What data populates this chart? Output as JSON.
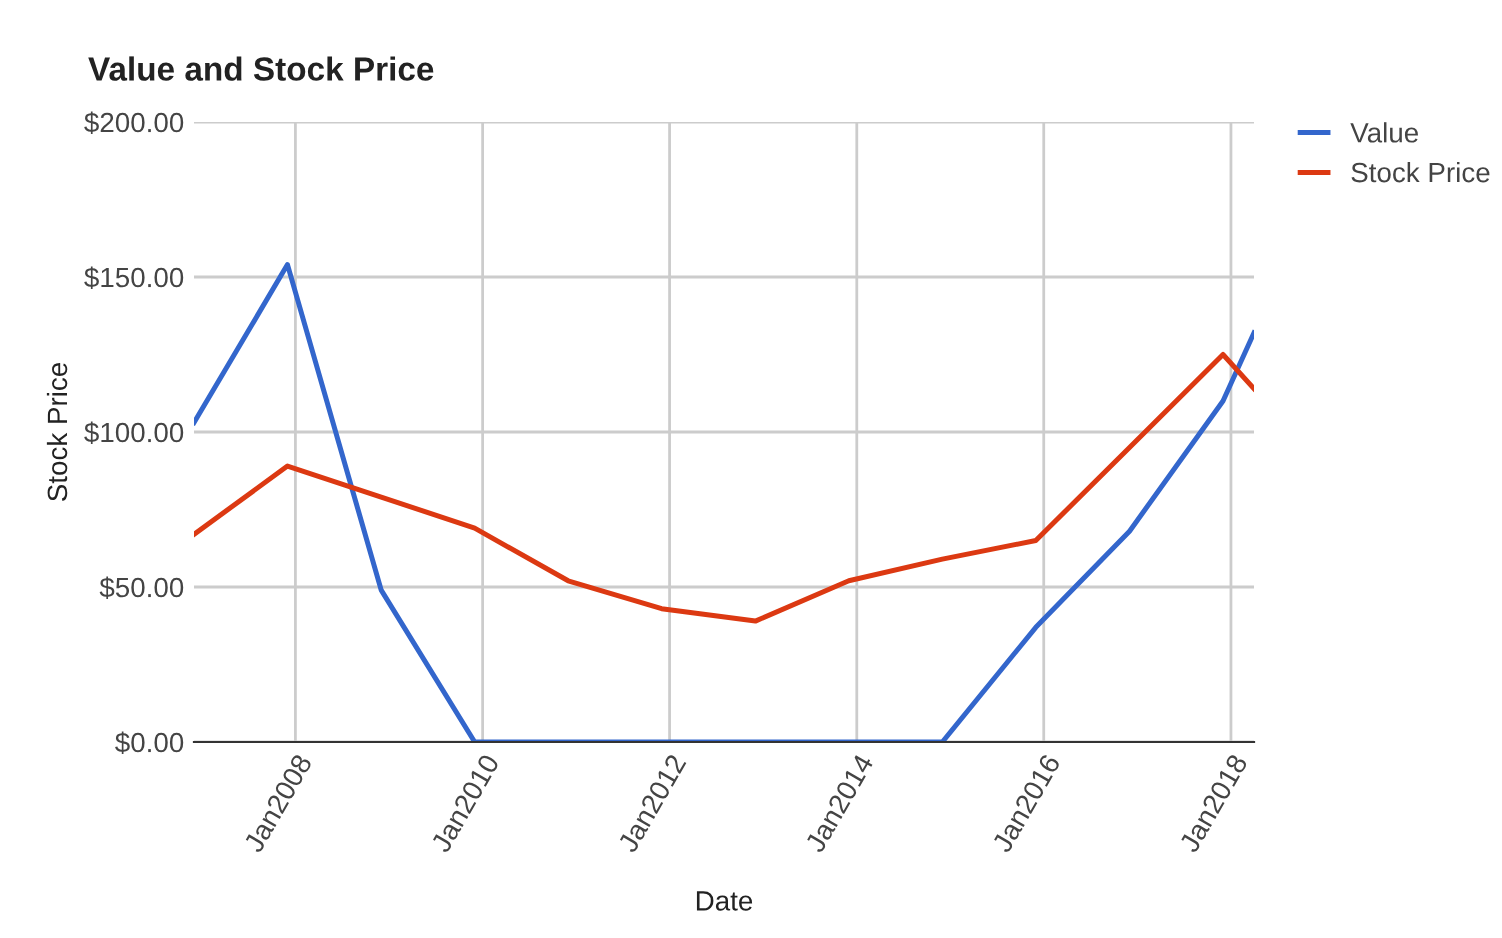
{
  "chart_data": {
    "type": "line",
    "title": "Value and Stock Price",
    "xlabel": "Date",
    "ylabel": "Stock Price",
    "x": [
      "2006-12",
      "2007-12",
      "2008-12",
      "2009-12",
      "2010-12",
      "2011-12",
      "2012-12",
      "2013-12",
      "2014-12",
      "2015-12",
      "2016-12",
      "2017-12",
      "2018-04"
    ],
    "series": [
      {
        "name": "Value",
        "color": "#3366cc",
        "values": [
          103,
          154,
          49,
          0,
          0,
          0,
          0,
          0,
          0,
          37,
          68,
          110,
          132
        ]
      },
      {
        "name": "Stock Price",
        "color": "#dc3912",
        "values": [
          67,
          89,
          79,
          69,
          52,
          43,
          39,
          52,
          59,
          65,
          95,
          125,
          114
        ]
      }
    ],
    "xlim": [
      "2006-12",
      "2018-04"
    ],
    "xticks": [
      {
        "value": "2008-01",
        "label": "Jan2008"
      },
      {
        "value": "2010-01",
        "label": "Jan2010"
      },
      {
        "value": "2012-01",
        "label": "Jan2012"
      },
      {
        "value": "2014-01",
        "label": "Jan2014"
      },
      {
        "value": "2016-01",
        "label": "Jan2016"
      },
      {
        "value": "2018-01",
        "label": "Jan2018"
      }
    ],
    "ylim": [
      0,
      200
    ],
    "yticks": [
      {
        "value": 0,
        "label": "$0.00"
      },
      {
        "value": 50,
        "label": "$50.00"
      },
      {
        "value": 100,
        "label": "$100.00"
      },
      {
        "value": 150,
        "label": "$150.00"
      },
      {
        "value": 200,
        "label": "$200.00"
      }
    ],
    "grid": true,
    "legend": "right",
    "marker": "none",
    "line_style": "solid"
  }
}
